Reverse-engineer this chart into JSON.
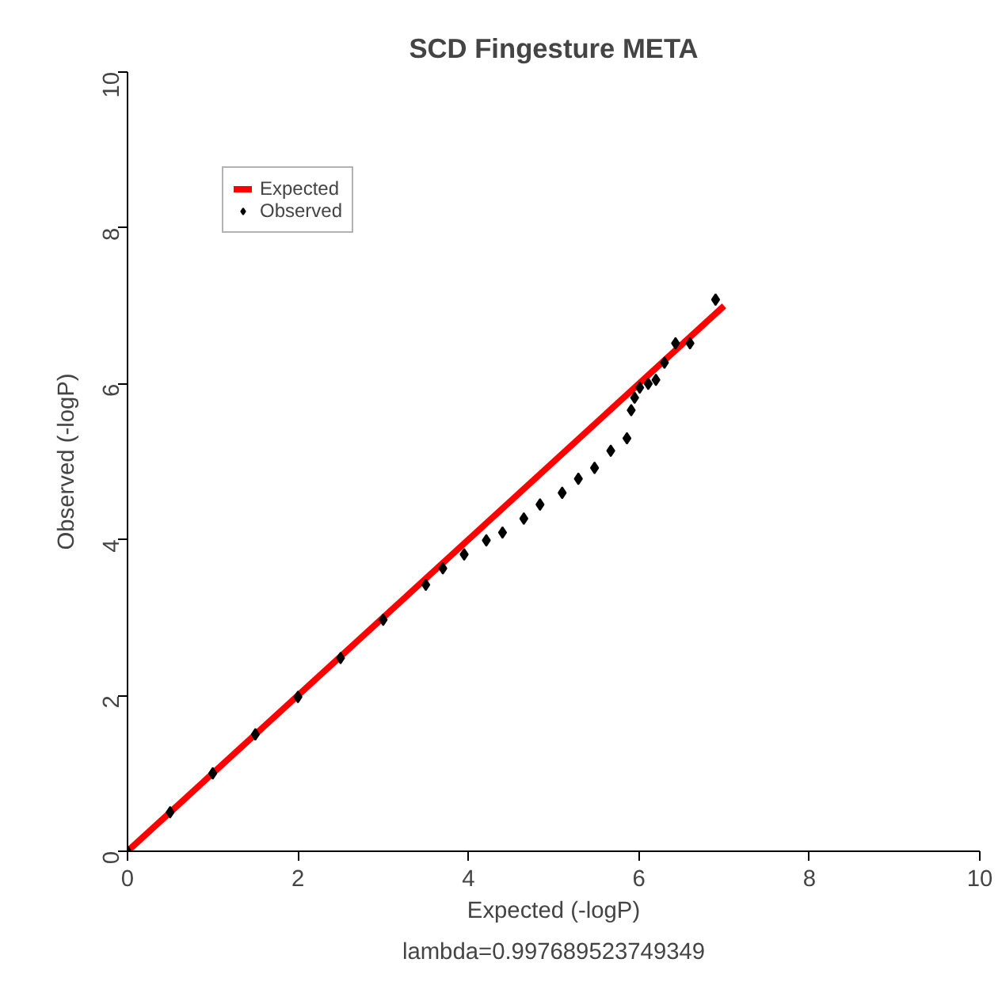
{
  "chart_data": {
    "type": "scatter",
    "title": "SCD Fingesture META",
    "xlabel": "Expected (-logP)",
    "ylabel": "Observed (-logP)",
    "annotations": [
      "lambda=0.997689523749349"
    ],
    "xlim": [
      0,
      10
    ],
    "ylim": [
      0,
      10
    ],
    "xticks": [
      0,
      2,
      4,
      6,
      8,
      10
    ],
    "yticks": [
      0,
      2,
      4,
      6,
      8,
      10
    ],
    "grid": false,
    "legend": "top left",
    "series": [
      {
        "name": "Expected",
        "type": "line",
        "color": "#ff0000",
        "x": [
          0,
          7
        ],
        "values": [
          0,
          7
        ]
      },
      {
        "name": "Observed",
        "marker": "diamond",
        "color": "#000000",
        "x": [
          0,
          0.5,
          1,
          1.5,
          2,
          2.5,
          3,
          3.5,
          3.7,
          3.95,
          4.21,
          4.4,
          4.65,
          4.84,
          5.1,
          5.29,
          5.48,
          5.67,
          5.86,
          5.91,
          5.95,
          6.01,
          6.11,
          6.2,
          6.3,
          6.43,
          6.6,
          6.9
        ],
        "values": [
          0,
          0.5,
          1,
          1.5,
          1.98,
          2.48,
          2.97,
          3.42,
          3.63,
          3.81,
          3.99,
          4.09,
          4.27,
          4.45,
          4.6,
          4.78,
          4.92,
          5.14,
          5.3,
          5.66,
          5.82,
          5.95,
          6.0,
          6.05,
          6.27,
          6.52,
          6.52,
          7.08
        ]
      }
    ]
  }
}
